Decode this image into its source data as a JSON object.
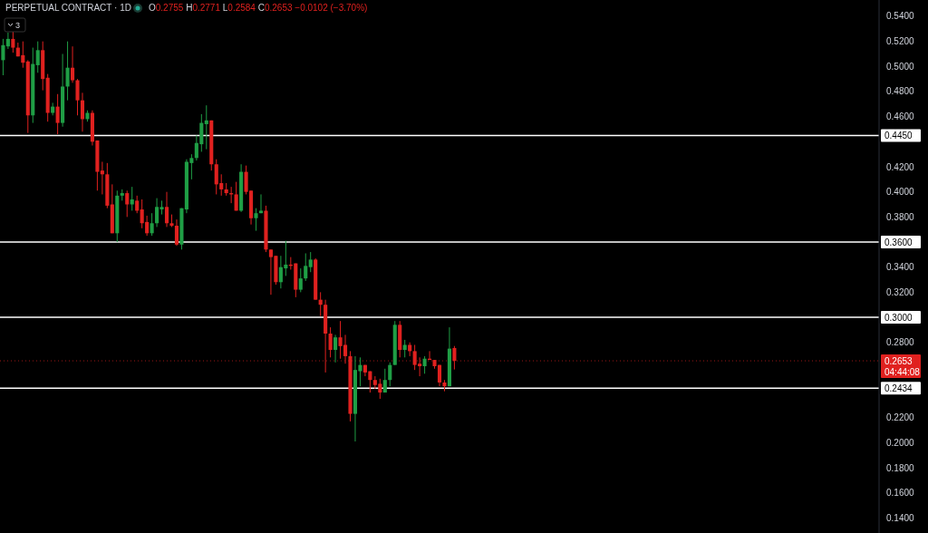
{
  "chart_data": {
    "type": "candlestick",
    "title": "PERPETUAL CONTRACT · 1D",
    "annotations": [
      "O0.2755 H0.2771 L0.2584 C0.2653 −0.0102 (−3.70%)",
      "3",
      "04:44:08"
    ],
    "categories": [
      null,
      null,
      null,
      null,
      null,
      null,
      null,
      null,
      null,
      null,
      null,
      null,
      null,
      null,
      null,
      null,
      null,
      null,
      null,
      null,
      null,
      null,
      null,
      null,
      null,
      null,
      null,
      null,
      null,
      null,
      null,
      null,
      null,
      null,
      null,
      null,
      null,
      null,
      null,
      null,
      null,
      null,
      null,
      null,
      null,
      null,
      null,
      null,
      null,
      null,
      null,
      null,
      null,
      null,
      null,
      null,
      null,
      null,
      null,
      null,
      null,
      null,
      null,
      null,
      null,
      null,
      null,
      null,
      null,
      null,
      null,
      null,
      null,
      null,
      null,
      null,
      null,
      null,
      null,
      null,
      null,
      null,
      null,
      null,
      null,
      null,
      null,
      null,
      null,
      null,
      null,
      null,
      null,
      null,
      null,
      null,
      null,
      null,
      null,
      null,
      null,
      null,
      null,
      null,
      null,
      null,
      null,
      null,
      null,
      null,
      null,
      null,
      null,
      null,
      null,
      null,
      null,
      null,
      null,
      null,
      null,
      null,
      null,
      null,
      null,
      null,
      null,
      null,
      null,
      null,
      null,
      null,
      null,
      null,
      null,
      null,
      null,
      null,
      null,
      null,
      null,
      null,
      null,
      null,
      null,
      null,
      null,
      null,
      null,
      null,
      null,
      null,
      null,
      null,
      null,
      null,
      null,
      null,
      null,
      null,
      null,
      null,
      null,
      null,
      null,
      null,
      null,
      null,
      null,
      null,
      null,
      null,
      null,
      null,
      null,
      null,
      null
    ],
    "ohlc": [
      [
        0.505,
        0.522,
        0.493,
        0.517
      ],
      [
        0.516,
        0.527,
        0.514,
        0.522
      ],
      [
        0.522,
        0.528,
        0.511,
        0.515
      ],
      [
        0.515,
        0.519,
        0.508,
        0.508
      ],
      [
        0.509,
        0.52,
        0.499,
        0.503
      ],
      [
        0.504,
        0.505,
        0.447,
        0.461
      ],
      [
        0.461,
        0.515,
        0.455,
        0.502
      ],
      [
        0.501,
        0.52,
        0.495,
        0.513
      ],
      [
        0.513,
        0.52,
        0.481,
        0.49
      ],
      [
        0.491,
        0.494,
        0.456,
        0.463
      ],
      [
        0.463,
        0.471,
        0.461,
        0.468
      ],
      [
        0.468,
        0.478,
        0.446,
        0.455
      ],
      [
        0.455,
        0.51,
        0.452,
        0.484
      ],
      [
        0.484,
        0.52,
        0.473,
        0.499
      ],
      [
        0.499,
        0.516,
        0.487,
        0.489
      ],
      [
        0.489,
        0.49,
        0.461,
        0.473
      ],
      [
        0.473,
        0.479,
        0.448,
        0.458
      ],
      [
        0.458,
        0.465,
        0.456,
        0.463
      ],
      [
        0.463,
        0.465,
        0.437,
        0.44
      ],
      [
        0.441,
        0.441,
        0.401,
        0.416
      ],
      [
        0.417,
        0.424,
        0.398,
        0.414
      ],
      [
        0.414,
        0.423,
        0.387,
        0.389
      ],
      [
        0.39,
        0.406,
        0.367,
        0.367
      ],
      [
        0.367,
        0.401,
        0.36,
        0.397
      ],
      [
        0.397,
        0.402,
        0.393,
        0.399
      ],
      [
        0.399,
        0.401,
        0.38,
        0.39
      ],
      [
        0.39,
        0.404,
        0.385,
        0.394
      ],
      [
        0.393,
        0.397,
        0.383,
        0.385
      ],
      [
        0.386,
        0.394,
        0.371,
        0.375
      ],
      [
        0.376,
        0.381,
        0.365,
        0.367
      ],
      [
        0.367,
        0.383,
        0.365,
        0.375
      ],
      [
        0.375,
        0.395,
        0.372,
        0.388
      ],
      [
        0.386,
        0.393,
        0.382,
        0.388
      ],
      [
        0.388,
        0.4,
        0.372,
        0.375
      ],
      [
        0.375,
        0.382,
        0.372,
        0.373
      ],
      [
        0.373,
        0.378,
        0.357,
        0.358
      ],
      [
        0.358,
        0.387,
        0.354,
        0.387
      ],
      [
        0.386,
        0.426,
        0.383,
        0.424
      ],
      [
        0.423,
        0.43,
        0.41,
        0.427
      ],
      [
        0.427,
        0.445,
        0.425,
        0.439
      ],
      [
        0.438,
        0.462,
        0.432,
        0.455
      ],
      [
        0.454,
        0.469,
        0.434,
        0.457
      ],
      [
        0.457,
        0.457,
        0.417,
        0.422
      ],
      [
        0.422,
        0.426,
        0.398,
        0.406
      ],
      [
        0.407,
        0.414,
        0.397,
        0.402
      ],
      [
        0.402,
        0.407,
        0.397,
        0.399
      ],
      [
        0.399,
        0.404,
        0.391,
        0.398
      ],
      [
        0.398,
        0.408,
        0.385,
        0.385
      ],
      [
        0.385,
        0.422,
        0.384,
        0.416
      ],
      [
        0.416,
        0.421,
        0.398,
        0.4
      ],
      [
        0.401,
        0.401,
        0.374,
        0.379
      ],
      [
        0.379,
        0.387,
        0.369,
        0.383
      ],
      [
        0.383,
        0.398,
        0.383,
        0.385
      ],
      [
        0.385,
        0.389,
        0.352,
        0.354
      ],
      [
        0.354,
        0.354,
        0.318,
        0.348
      ],
      [
        0.349,
        0.349,
        0.326,
        0.328
      ],
      [
        0.328,
        0.349,
        0.323,
        0.34
      ],
      [
        0.339,
        0.361,
        0.333,
        0.342
      ],
      [
        0.342,
        0.348,
        0.338,
        0.341
      ],
      [
        0.343,
        0.343,
        0.316,
        0.322
      ],
      [
        0.322,
        0.339,
        0.32,
        0.331
      ],
      [
        0.331,
        0.351,
        0.329,
        0.341
      ],
      [
        0.34,
        0.352,
        0.336,
        0.346
      ],
      [
        0.346,
        0.347,
        0.314,
        0.314
      ],
      [
        0.314,
        0.32,
        0.301,
        0.31
      ],
      [
        0.31,
        0.314,
        0.256,
        0.287
      ],
      [
        0.287,
        0.292,
        0.268,
        0.274
      ],
      [
        0.274,
        0.286,
        0.264,
        0.284
      ],
      [
        0.284,
        0.297,
        0.267,
        0.277
      ],
      [
        0.278,
        0.286,
        0.263,
        0.269
      ],
      [
        0.269,
        0.273,
        0.217,
        0.223
      ],
      [
        0.223,
        0.269,
        0.201,
        0.258
      ],
      [
        0.257,
        0.268,
        0.245,
        0.262
      ],
      [
        0.262,
        0.262,
        0.253,
        0.256
      ],
      [
        0.257,
        0.257,
        0.24,
        0.25
      ],
      [
        0.25,
        0.253,
        0.243,
        0.246
      ],
      [
        0.247,
        0.251,
        0.235,
        0.24
      ],
      [
        0.24,
        0.259,
        0.24,
        0.25
      ],
      [
        0.25,
        0.264,
        0.245,
        0.262
      ],
      [
        0.262,
        0.297,
        0.262,
        0.294
      ],
      [
        0.294,
        0.297,
        0.268,
        0.274
      ],
      [
        0.274,
        0.282,
        0.268,
        0.278
      ],
      [
        0.278,
        0.28,
        0.269,
        0.273
      ],
      [
        0.273,
        0.278,
        0.258,
        0.262
      ],
      [
        0.263,
        0.268,
        0.253,
        0.261
      ],
      [
        0.261,
        0.269,
        0.255,
        0.267
      ],
      [
        0.267,
        0.273,
        0.266,
        0.266
      ],
      [
        0.266,
        0.266,
        0.259,
        0.261
      ],
      [
        0.262,
        0.262,
        0.245,
        0.248
      ],
      [
        0.248,
        0.25,
        0.241,
        0.245
      ],
      [
        0.245,
        0.292,
        0.245,
        0.275
      ],
      [
        0.2755,
        0.2771,
        0.2584,
        0.2653
      ],
      null,
      null,
      null,
      null,
      null,
      null,
      null,
      null,
      null,
      null,
      null,
      null,
      null,
      null,
      null,
      null,
      null,
      null,
      null,
      null,
      null,
      null,
      null,
      null,
      null,
      null,
      null,
      null,
      null,
      null,
      null,
      null,
      null,
      null,
      null,
      null,
      null,
      null,
      null,
      null,
      null,
      null,
      null,
      null,
      null,
      null,
      null,
      null,
      null,
      null,
      null,
      null,
      null,
      null,
      null,
      null,
      null,
      null,
      null,
      null,
      null,
      null,
      null,
      null,
      null,
      null,
      null,
      null,
      null,
      null,
      null,
      null,
      null,
      null,
      null,
      null,
      null,
      null,
      null,
      null,
      null,
      null,
      null,
      null,
      null
    ],
    "ylim": [
      0.128,
      0.553
    ],
    "yticks": [
      {
        "value": 0.54,
        "label": "0.5400"
      },
      {
        "value": 0.52,
        "label": "0.5200"
      },
      {
        "value": 0.5,
        "label": "0.5000"
      },
      {
        "value": 0.48,
        "label": "0.4800"
      },
      {
        "value": 0.46,
        "label": "0.4600"
      },
      {
        "value": 0.42,
        "label": "0.4200"
      },
      {
        "value": 0.4,
        "label": "0.4000"
      },
      {
        "value": 0.38,
        "label": "0.3800"
      },
      {
        "value": 0.34,
        "label": "0.3400"
      },
      {
        "value": 0.32,
        "label": "0.3200"
      },
      {
        "value": 0.28,
        "label": "0.2800"
      },
      {
        "value": 0.22,
        "label": "0.2200"
      },
      {
        "value": 0.2,
        "label": "0.2000"
      },
      {
        "value": 0.18,
        "label": "0.1800"
      },
      {
        "value": 0.16,
        "label": "0.1600"
      },
      {
        "value": 0.14,
        "label": "0.1400"
      }
    ],
    "ref_lines": [
      {
        "axis": "y",
        "value": 0.445,
        "label": "0.4450",
        "color": "#ffffff",
        "line_style": "solid"
      },
      {
        "axis": "y",
        "value": 0.36,
        "label": "0.3600",
        "color": "#ffffff",
        "line_style": "solid"
      },
      {
        "axis": "y",
        "value": 0.3,
        "label": "0.3000",
        "color": "#ffffff",
        "line_style": "solid"
      },
      {
        "axis": "y",
        "value": 0.2434,
        "label": "0.2434",
        "color": "#ffffff",
        "line_style": "solid"
      },
      {
        "axis": "y",
        "value": 0.2653,
        "label": "0.2653",
        "color": "#e0211f",
        "line_style": "dotted"
      }
    ],
    "tick_labels": "y"
  }
}
